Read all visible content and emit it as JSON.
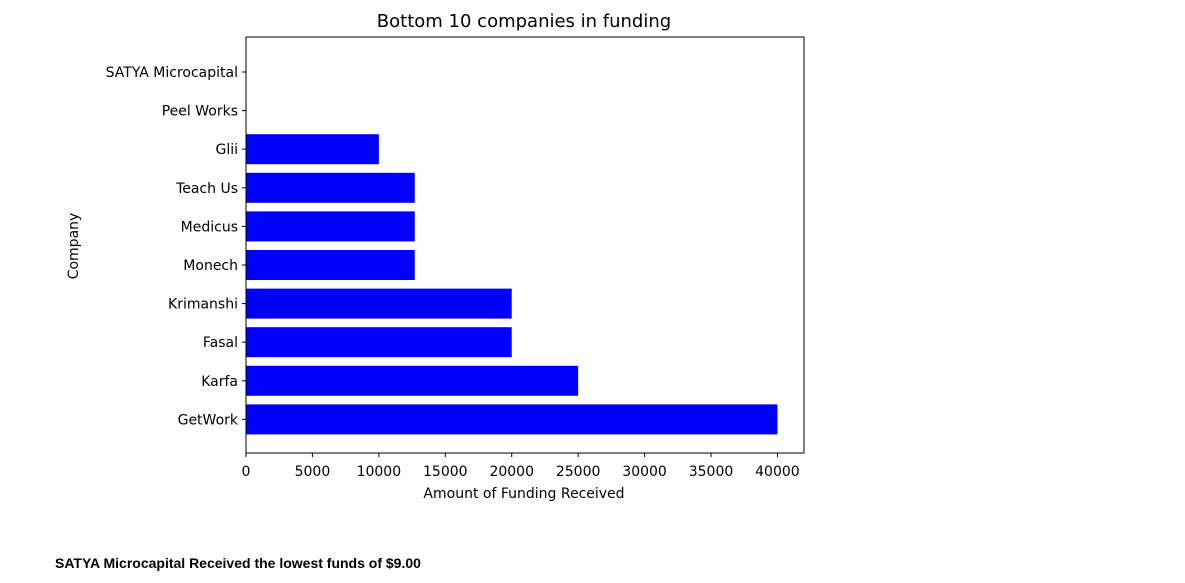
{
  "chart_data": {
    "type": "bar",
    "orientation": "horizontal",
    "title": "Bottom 10 companies in funding",
    "xlabel": "Amount of Funding Received",
    "ylabel": "Company",
    "categories": [
      "GetWork",
      "Karfa",
      "Fasal",
      "Krimanshi",
      "Monech",
      "Medicus",
      "Teach Us",
      "Glii",
      "Peel Works",
      "SATYA Microcapital"
    ],
    "values": [
      40000,
      25000,
      20000,
      20000,
      12700,
      12700,
      12700,
      10000,
      10,
      9
    ],
    "xlim": [
      0,
      42000
    ],
    "xticks": [
      0,
      5000,
      10000,
      15000,
      20000,
      25000,
      30000,
      35000,
      40000
    ],
    "bar_color": "#0000ff",
    "grid": false,
    "legend": "none"
  },
  "caption": "SATYA Microcapital Received the lowest funds of $9.00"
}
